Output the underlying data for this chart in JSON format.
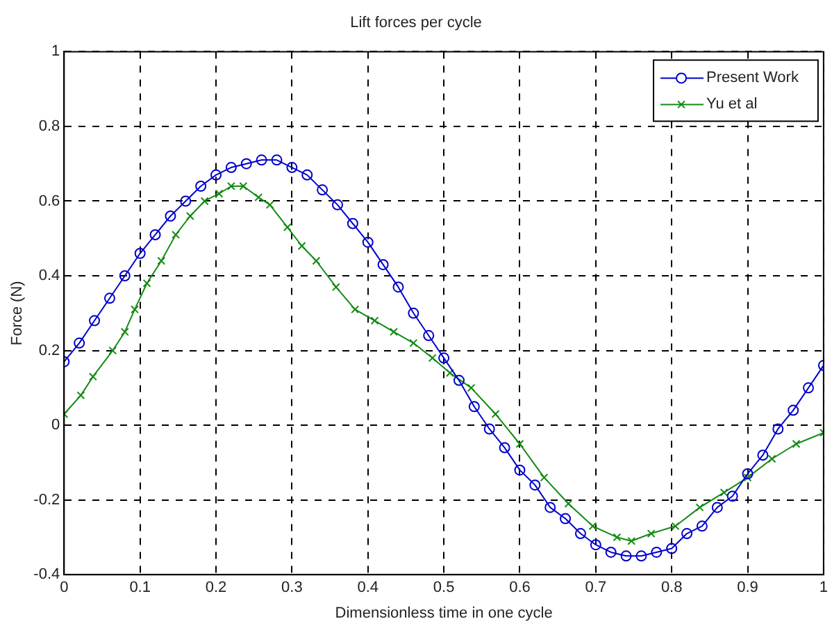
{
  "chart_data": {
    "type": "line",
    "title": "Lift forces per cycle",
    "xlabel": "Dimensionless time in one cycle",
    "ylabel": "Force (N)",
    "xlim": [
      0,
      1
    ],
    "xticks": [
      0,
      0.1,
      0.2,
      0.3,
      0.4,
      0.5,
      0.6,
      0.7,
      0.8,
      0.9,
      1
    ],
    "ylim": [
      -0.4,
      1
    ],
    "yticks": [
      -0.4,
      -0.2,
      0,
      0.2,
      0.4,
      0.6,
      0.8,
      1
    ],
    "grid": true,
    "legend": "top right",
    "line_style": "solid",
    "series": [
      {
        "name": "Present Work",
        "color": "#0000cc",
        "marker": "circle",
        "x": [
          0,
          0.02,
          0.04,
          0.06,
          0.08,
          0.1,
          0.12,
          0.14,
          0.16,
          0.18,
          0.2,
          0.22,
          0.24,
          0.26,
          0.28,
          0.3,
          0.32,
          0.34,
          0.36,
          0.38,
          0.4,
          0.42,
          0.44,
          0.46,
          0.48,
          0.5,
          0.52,
          0.54,
          0.56,
          0.58,
          0.6,
          0.62,
          0.64,
          0.66,
          0.68,
          0.7,
          0.72,
          0.74,
          0.76,
          0.78,
          0.8,
          0.82,
          0.84,
          0.86,
          0.88,
          0.9,
          0.92,
          0.94,
          0.96,
          0.98,
          1
        ],
        "values": [
          0.17,
          0.22,
          0.28,
          0.34,
          0.4,
          0.46,
          0.51,
          0.56,
          0.6,
          0.64,
          0.67,
          0.69,
          0.7,
          0.71,
          0.71,
          0.69,
          0.67,
          0.63,
          0.59,
          0.54,
          0.49,
          0.43,
          0.37,
          0.3,
          0.24,
          0.18,
          0.12,
          0.05,
          -0.01,
          -0.06,
          -0.12,
          -0.16,
          -0.22,
          -0.25,
          -0.29,
          -0.32,
          -0.34,
          -0.35,
          -0.35,
          -0.34,
          -0.33,
          -0.29,
          -0.27,
          -0.22,
          -0.19,
          -0.13,
          -0.08,
          -0.01,
          0.04,
          0.1,
          0.16
        ]
      },
      {
        "name": "Yu et al",
        "color": "#138a13",
        "marker": "cross",
        "x": [
          0,
          0.022,
          0.038,
          0.064,
          0.08,
          0.093,
          0.109,
          0.128,
          0.147,
          0.166,
          0.185,
          0.204,
          0.22,
          0.236,
          0.256,
          0.271,
          0.294,
          0.313,
          0.332,
          0.358,
          0.383,
          0.409,
          0.434,
          0.46,
          0.485,
          0.508,
          0.536,
          0.568,
          0.6,
          0.632,
          0.664,
          0.696,
          0.728,
          0.747,
          0.773,
          0.805,
          0.837,
          0.869,
          0.9,
          0.932,
          0.964,
          1
        ],
        "values": [
          0.03,
          0.08,
          0.13,
          0.2,
          0.25,
          0.31,
          0.38,
          0.44,
          0.51,
          0.56,
          0.6,
          0.62,
          0.64,
          0.64,
          0.61,
          0.59,
          0.53,
          0.48,
          0.44,
          0.37,
          0.31,
          0.28,
          0.25,
          0.22,
          0.18,
          0.14,
          0.1,
          0.03,
          -0.05,
          -0.14,
          -0.21,
          -0.27,
          -0.3,
          -0.31,
          -0.29,
          -0.27,
          -0.22,
          -0.18,
          -0.14,
          -0.09,
          -0.05,
          -0.02
        ]
      }
    ]
  }
}
